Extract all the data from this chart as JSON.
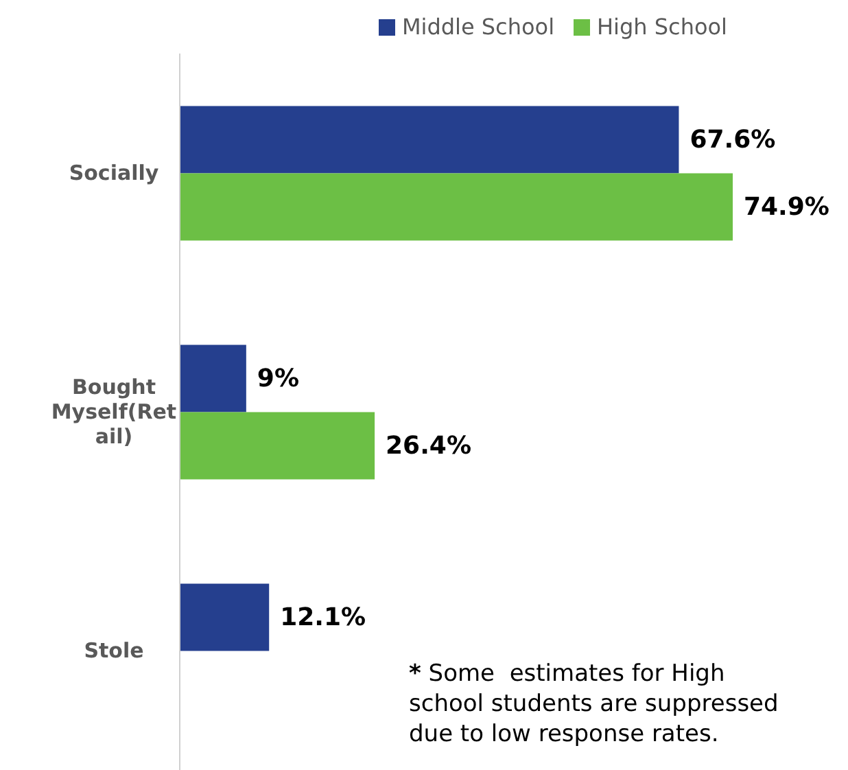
{
  "chart_data": {
    "type": "bar",
    "orientation": "horizontal",
    "categories": [
      "Socially",
      "Bought Myself(Retail)",
      "Stole"
    ],
    "series": [
      {
        "name": "Middle School",
        "color": "#253f8e",
        "values": [
          67.6,
          9,
          12.1
        ],
        "value_labels": [
          "67.6%",
          "9%",
          "12.1%"
        ]
      },
      {
        "name": "High School",
        "color": "#6cbf45",
        "values": [
          74.9,
          26.4,
          null
        ],
        "value_labels": [
          "74.9%",
          "26.4%",
          null
        ]
      }
    ],
    "legend": "top right",
    "tick_labels": "y",
    "annotations": [
      "* Some  estimates for High school students are suppressed due to low response rates."
    ]
  }
}
